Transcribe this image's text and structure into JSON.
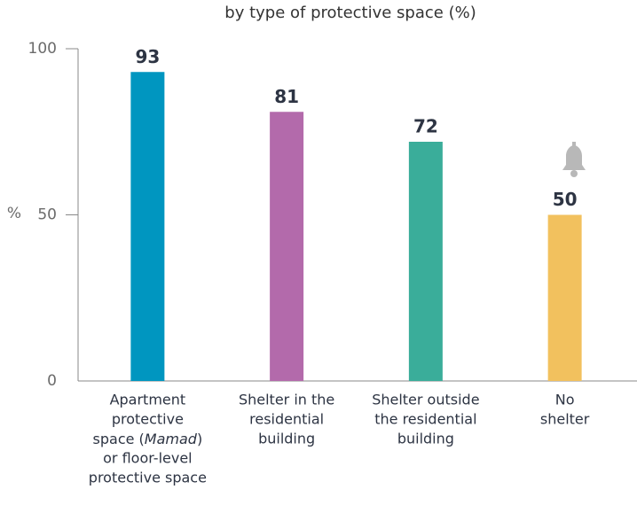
{
  "chart_data": {
    "type": "bar",
    "title": "by type of protective space (%)",
    "y_label": "%",
    "categories": [
      [
        "Apartment",
        "protective",
        [
          {
            "text": "space ("
          },
          {
            "text": "Mamad",
            "italic": true
          },
          {
            "text": ")"
          }
        ],
        "or floor-level",
        "protective space"
      ],
      [
        "Shelter in the",
        "residential",
        "building"
      ],
      [
        "Shelter outside",
        "the residential",
        "building"
      ],
      [
        "No",
        "shelter"
      ]
    ],
    "values": [
      93,
      81,
      72,
      50
    ],
    "colors": [
      "#0096c0",
      "#b36aab",
      "#3aad9a",
      "#f2c15e"
    ],
    "ylim": [
      0,
      100
    ],
    "yticks": [
      0,
      50,
      100
    ],
    "grid": false
  }
}
